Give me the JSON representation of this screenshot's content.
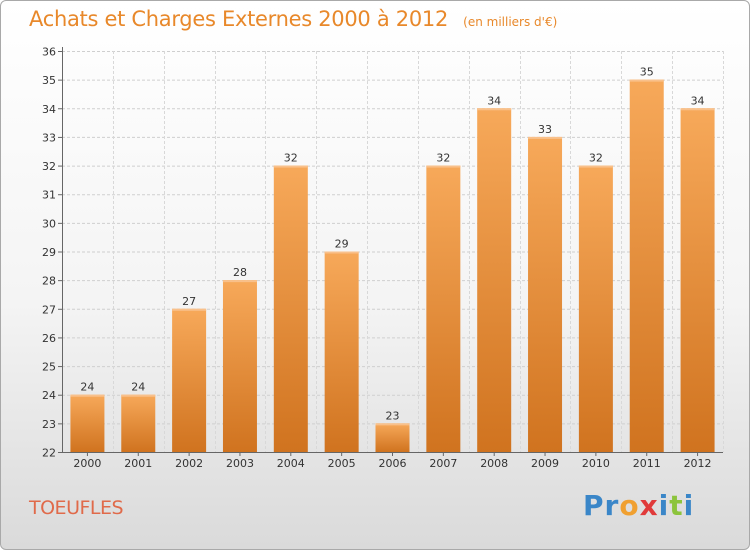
{
  "header": {
    "title": "Achats et Charges Externes 2000 à 2012",
    "subtitle": "(en milliers d'€)"
  },
  "commune": "TOEUFLES",
  "logo": {
    "text": "Proxiti",
    "letters": [
      {
        "ch": "P",
        "color": "#3a86c8"
      },
      {
        "ch": "r",
        "color": "#3a86c8"
      },
      {
        "ch": "o",
        "color": "#f0a030"
      },
      {
        "ch": "x",
        "color": "#e03a3a"
      },
      {
        "ch": "i",
        "color": "#3a86c8"
      },
      {
        "ch": "t",
        "color": "#8cc43c"
      },
      {
        "ch": "i",
        "color": "#3a86c8"
      }
    ]
  },
  "colors": {
    "bar_top": "#f7a95a",
    "bar_bottom": "#d0731f",
    "title": "#e8882a",
    "commune": "#e06a4a"
  },
  "chart_data": {
    "type": "bar",
    "categories": [
      "2000",
      "2001",
      "2002",
      "2003",
      "2004",
      "2005",
      "2006",
      "2007",
      "2008",
      "2009",
      "2010",
      "2011",
      "2012"
    ],
    "values": [
      24,
      24,
      27,
      28,
      32,
      29,
      23,
      32,
      34,
      33,
      32,
      35,
      34
    ],
    "ylim": [
      22,
      36
    ],
    "yticks": [
      22,
      23,
      24,
      25,
      26,
      27,
      28,
      29,
      30,
      31,
      32,
      33,
      34,
      35,
      36
    ],
    "grid": true,
    "data_labels": true
  }
}
